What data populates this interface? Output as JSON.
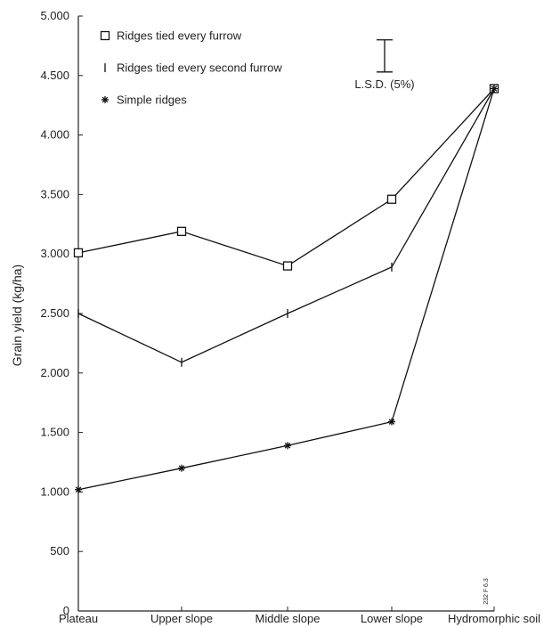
{
  "chart_data": {
    "type": "line",
    "ylabel": "Grain yield (kg/ha)",
    "categories": [
      "Plateau",
      "Upper slope",
      "Middle slope",
      "Lower slope",
      "Hydromorphic soil"
    ],
    "ylim": [
      0,
      5000
    ],
    "yticks": [
      0,
      500,
      1000,
      1500,
      2000,
      2500,
      3000,
      3500,
      4000,
      4500,
      5000
    ],
    "ytick_labels": [
      "0",
      "500",
      "1.000",
      "1.500",
      "2.000",
      "2.500",
      "3.000",
      "3.500",
      "4.000",
      "4.500",
      "5.000"
    ],
    "grid": false,
    "legend_position": "top-left",
    "series": [
      {
        "name": "Ridges tied every furrow",
        "marker": "square",
        "values": [
          3010,
          3190,
          2900,
          3460,
          4390
        ]
      },
      {
        "name": "Ridges tied every second furrow",
        "marker": "tick",
        "values": [
          2500,
          2090,
          2500,
          2890,
          4390
        ]
      },
      {
        "name": "Simple ridges",
        "marker": "asterisk",
        "values": [
          1020,
          1200,
          1390,
          1590,
          4390
        ]
      }
    ],
    "annotations": {
      "lsd_label": "L.S.D. (5%)",
      "lsd_range": [
        4530,
        4800
      ],
      "code_label": "232 F 6.3"
    }
  }
}
